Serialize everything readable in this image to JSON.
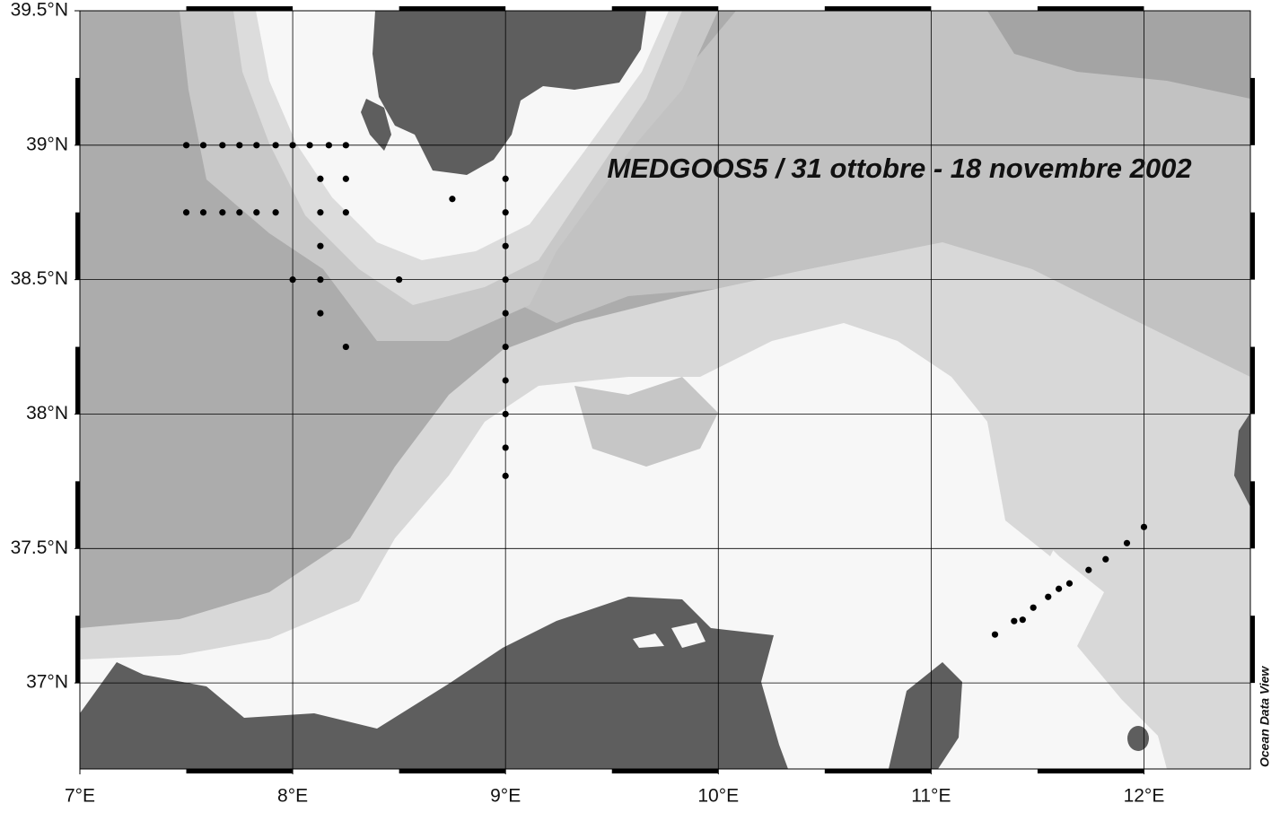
{
  "chart_data": {
    "type": "scatter",
    "title": "MEDGOOS5 / 31 ottobre - 18 novembre 2002",
    "source_label": "Ocean Data View",
    "xlim": [
      7,
      12.5
    ],
    "ylim": [
      36.68,
      39.5
    ],
    "xticks": [
      {
        "value": 7,
        "label": "7°E"
      },
      {
        "value": 8,
        "label": "8°E"
      },
      {
        "value": 9,
        "label": "9°E"
      },
      {
        "value": 10,
        "label": "10°E"
      },
      {
        "value": 11,
        "label": "11°E"
      },
      {
        "value": 12,
        "label": "12°E"
      }
    ],
    "yticks": [
      {
        "value": 37,
        "label": "37°N"
      },
      {
        "value": 37.5,
        "label": "37.5°N"
      },
      {
        "value": 38,
        "label": "38°N"
      },
      {
        "value": 38.5,
        "label": "38.5°N"
      },
      {
        "value": 39,
        "label": "39°N"
      },
      {
        "value": 39.5,
        "label": "39.5°N"
      }
    ],
    "grid": true,
    "series": [
      {
        "color": "#000000",
        "x": [
          7.5,
          7.58,
          7.67,
          7.75,
          7.83,
          7.92,
          8.0,
          8.08,
          8.17,
          8.25,
          8.13,
          8.25,
          9.0,
          8.75,
          7.5,
          7.58,
          7.67,
          7.75,
          7.83,
          7.92,
          8.13,
          8.25,
          9.0,
          8.13,
          9.0,
          8.0,
          8.13,
          8.5,
          9.0,
          8.13,
          9.0,
          8.25,
          9.0,
          9.0,
          9.0,
          9.0,
          9.0,
          11.3,
          11.39,
          11.43,
          11.48,
          11.55,
          11.6,
          11.65,
          11.74,
          11.82,
          11.92,
          12.0
        ],
        "y": [
          39.0,
          39.0,
          39.0,
          39.0,
          39.0,
          39.0,
          39.0,
          39.0,
          39.0,
          39.0,
          38.875,
          38.875,
          38.875,
          38.8,
          38.75,
          38.75,
          38.75,
          38.75,
          38.75,
          38.75,
          38.75,
          38.75,
          38.75,
          38.625,
          38.625,
          38.5,
          38.5,
          38.5,
          38.5,
          38.375,
          38.375,
          38.25,
          38.25,
          38.125,
          38.0,
          37.875,
          37.77,
          37.18,
          37.23,
          37.235,
          37.28,
          37.32,
          37.35,
          37.37,
          37.42,
          37.46,
          37.52,
          37.58
        ]
      }
    ]
  }
}
